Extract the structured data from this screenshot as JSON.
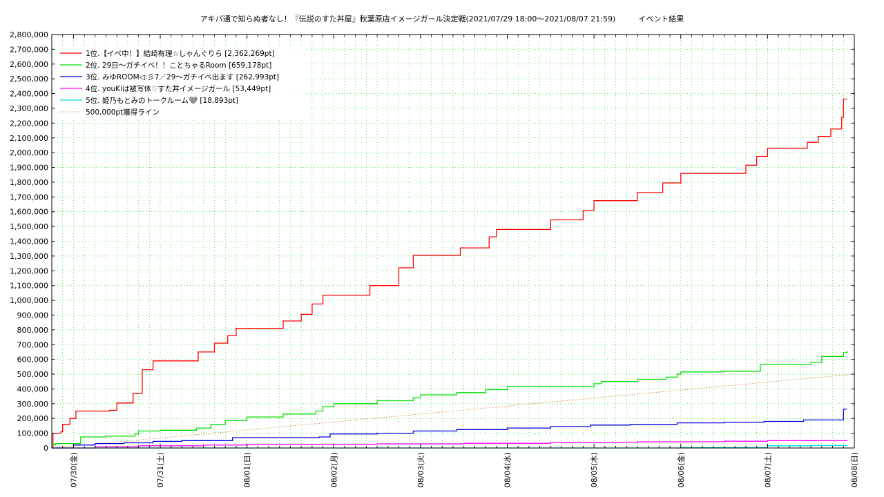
{
  "chart_data": {
    "type": "line",
    "title": "アキバ通で知らぬ者なし！『伝説のすた丼屋』秋葉原店イメージガール決定戦(2021/07/29 18:00〜2021/08/07 21:59)　　　イベント結果",
    "xlabel": "",
    "ylabel": "",
    "x_range": [
      "2021/07/29 18:00",
      "2021/08/08 00:00"
    ],
    "ylim": [
      0,
      2800000
    ],
    "y_ticks": [
      "0",
      "100,000",
      "200,000",
      "300,000",
      "400,000",
      "500,000",
      "600,000",
      "700,000",
      "800,000",
      "900,000",
      "1,000,000",
      "1,100,000",
      "1,200,000",
      "1,300,000",
      "1,400,000",
      "1,500,000",
      "1,600,000",
      "1,700,000",
      "1,800,000",
      "1,900,000",
      "2,000,000",
      "2,100,000",
      "2,200,000",
      "2,300,000",
      "2,400,000",
      "2,500,000",
      "2,600,000",
      "2,700,000",
      "2,800,000"
    ],
    "x_ticks": [
      {
        "label": "07/30(金)",
        "x": "2021/07/30 00:00"
      },
      {
        "label": "07/31(土)",
        "x": "2021/07/31 00:00"
      },
      {
        "label": "08/01(日)",
        "x": "2021/08/01 00:00"
      },
      {
        "label": "08/02(月)",
        "x": "2021/08/02 00:00"
      },
      {
        "label": "08/03(火)",
        "x": "2021/08/03 00:00"
      },
      {
        "label": "08/04(水)",
        "x": "2021/08/04 00:00"
      },
      {
        "label": "08/05(木)",
        "x": "2021/08/05 00:00"
      },
      {
        "label": "08/06(金)",
        "x": "2021/08/06 00:00"
      },
      {
        "label": "08/07(土)",
        "x": "2021/08/07 00:00"
      },
      {
        "label": "08/08(日)",
        "x": "2021/08/08 00:00"
      }
    ],
    "grid": true,
    "legend_position": "top-left",
    "series": [
      {
        "name": "1位.【イベ中！】結崎有理☆しゃんぐりら [2,362,269pt]",
        "color": "#ff0000",
        "points": [
          [
            "2021/07/29 18:00",
            0
          ],
          [
            "2021/07/29 18:20",
            100000
          ],
          [
            "2021/07/29 20:30",
            110000
          ],
          [
            "2021/07/29 21:00",
            160000
          ],
          [
            "2021/07/29 23:00",
            200000
          ],
          [
            "2021/07/30 00:40",
            250000
          ],
          [
            "2021/07/30 10:00",
            255000
          ],
          [
            "2021/07/30 12:00",
            305000
          ],
          [
            "2021/07/30 16:30",
            370000
          ],
          [
            "2021/07/30 19:00",
            530000
          ],
          [
            "2021/07/30 22:00",
            590000
          ],
          [
            "2021/07/31 10:30",
            650000
          ],
          [
            "2021/07/31 15:00",
            710000
          ],
          [
            "2021/07/31 18:40",
            760000
          ],
          [
            "2021/07/31 21:00",
            810000
          ],
          [
            "2021/08/01 10:00",
            860000
          ],
          [
            "2021/08/01 15:00",
            905000
          ],
          [
            "2021/08/01 18:00",
            975000
          ],
          [
            "2021/08/01 21:00",
            1035000
          ],
          [
            "2021/08/02 10:00",
            1100000
          ],
          [
            "2021/08/02 18:00",
            1220000
          ],
          [
            "2021/08/02 22:00",
            1305000
          ],
          [
            "2021/08/03 11:00",
            1355000
          ],
          [
            "2021/08/03 19:00",
            1430000
          ],
          [
            "2021/08/03 21:00",
            1480000
          ],
          [
            "2021/08/04 12:00",
            1545000
          ],
          [
            "2021/08/04 21:00",
            1610000
          ],
          [
            "2021/08/05 00:00",
            1675000
          ],
          [
            "2021/08/05 12:00",
            1730000
          ],
          [
            "2021/08/05 19:00",
            1795000
          ],
          [
            "2021/08/06 00:00",
            1860000
          ],
          [
            "2021/08/06 18:00",
            1915000
          ],
          [
            "2021/08/06 21:00",
            1975000
          ],
          [
            "2021/08/07 00:00",
            2030000
          ],
          [
            "2021/08/07 11:00",
            2070000
          ],
          [
            "2021/08/07 14:00",
            2110000
          ],
          [
            "2021/08/07 17:30",
            2160000
          ],
          [
            "2021/08/07 20:30",
            2240000
          ],
          [
            "2021/08/07 21:00",
            2362269
          ],
          [
            "2021/08/07 21:59",
            2362269
          ]
        ]
      },
      {
        "name": "2位. 29日〜ガチイベ！！ことちゃるRoom [659,178pt]",
        "color": "#00dd00",
        "points": [
          [
            "2021/07/29 18:00",
            20000
          ],
          [
            "2021/07/29 19:00",
            30000
          ],
          [
            "2021/07/30 02:00",
            75000
          ],
          [
            "2021/07/30 09:00",
            80000
          ],
          [
            "2021/07/30 17:00",
            95000
          ],
          [
            "2021/07/30 18:00",
            115000
          ],
          [
            "2021/07/31 00:00",
            120000
          ],
          [
            "2021/07/31 10:00",
            135000
          ],
          [
            "2021/07/31 14:00",
            160000
          ],
          [
            "2021/07/31 18:00",
            185000
          ],
          [
            "2021/08/01 00:00",
            210000
          ],
          [
            "2021/08/01 10:00",
            230000
          ],
          [
            "2021/08/01 19:00",
            250000
          ],
          [
            "2021/08/01 21:00",
            280000
          ],
          [
            "2021/08/02 00:00",
            300000
          ],
          [
            "2021/08/02 12:00",
            320000
          ],
          [
            "2021/08/02 22:00",
            340000
          ],
          [
            "2021/08/03 00:00",
            360000
          ],
          [
            "2021/08/03 10:00",
            375000
          ],
          [
            "2021/08/03 18:00",
            395000
          ],
          [
            "2021/08/04 00:00",
            415000
          ],
          [
            "2021/08/05 00:00",
            435000
          ],
          [
            "2021/08/05 02:00",
            450000
          ],
          [
            "2021/08/05 12:00",
            465000
          ],
          [
            "2021/08/05 20:00",
            480000
          ],
          [
            "2021/08/05 23:00",
            500000
          ],
          [
            "2021/08/06 00:00",
            515000
          ],
          [
            "2021/08/06 12:00",
            520000
          ],
          [
            "2021/08/06 22:00",
            565000
          ],
          [
            "2021/08/07 12:00",
            580000
          ],
          [
            "2021/08/07 15:00",
            620000
          ],
          [
            "2021/08/07 21:00",
            645000
          ],
          [
            "2021/08/07 21:59",
            659178
          ]
        ]
      },
      {
        "name": "3位. みゆROOM◁:彡7／29〜ガチイベ出ます [262,993pt]",
        "color": "#0000dd",
        "points": [
          [
            "2021/07/29 18:00",
            0
          ],
          [
            "2021/07/29 23:00",
            0
          ],
          [
            "2021/07/30 00:00",
            20000
          ],
          [
            "2021/07/30 06:00",
            30000
          ],
          [
            "2021/07/30 14:00",
            35000
          ],
          [
            "2021/07/30 22:00",
            45000
          ],
          [
            "2021/07/31 06:00",
            50000
          ],
          [
            "2021/07/31 20:00",
            70000
          ],
          [
            "2021/08/01 20:00",
            75000
          ],
          [
            "2021/08/01 23:00",
            95000
          ],
          [
            "2021/08/02 12:00",
            100000
          ],
          [
            "2021/08/02 22:00",
            115000
          ],
          [
            "2021/08/03 10:00",
            125000
          ],
          [
            "2021/08/04 00:00",
            135000
          ],
          [
            "2021/08/04 12:00",
            145000
          ],
          [
            "2021/08/04 23:00",
            155000
          ],
          [
            "2021/08/05 10:00",
            160000
          ],
          [
            "2021/08/05 23:00",
            170000
          ],
          [
            "2021/08/06 12:00",
            175000
          ],
          [
            "2021/08/06 23:00",
            180000
          ],
          [
            "2021/08/07 10:00",
            190000
          ],
          [
            "2021/08/07 20:30",
            190000
          ],
          [
            "2021/08/07 21:00",
            262993
          ],
          [
            "2021/08/07 21:59",
            262993
          ]
        ]
      },
      {
        "name": "4位. youKiは被写体♡すた丼イメージガール [53,449pt]",
        "color": "#ff00ff",
        "points": [
          [
            "2021/07/29 18:00",
            0
          ],
          [
            "2021/07/30 04:00",
            0
          ],
          [
            "2021/07/30 06:00",
            8000
          ],
          [
            "2021/07/30 18:00",
            15000
          ],
          [
            "2021/07/31 12:00",
            20000
          ],
          [
            "2021/08/01 00:00",
            25000
          ],
          [
            "2021/08/02 12:00",
            28000
          ],
          [
            "2021/08/03 12:00",
            32000
          ],
          [
            "2021/08/04 12:00",
            38000
          ],
          [
            "2021/08/05 12:00",
            42000
          ],
          [
            "2021/08/06 12:00",
            46000
          ],
          [
            "2021/08/07 00:00",
            50000
          ],
          [
            "2021/08/07 21:59",
            53449
          ]
        ]
      },
      {
        "name": "5位. 姫乃もとみのトークルーム🩶 [18,893pt]",
        "color": "#00dddd",
        "points": [
          [
            "2021/07/29 18:00",
            0
          ],
          [
            "2021/08/05 00:00",
            0
          ],
          [
            "2021/08/06 00:00",
            3000
          ],
          [
            "2021/08/07 00:00",
            15000
          ],
          [
            "2021/08/07 12:00",
            17000
          ],
          [
            "2021/08/07 21:59",
            18893
          ]
        ]
      },
      {
        "name": "500,000pt獲得ライン",
        "color": "#cc6600",
        "dotted": true,
        "points": [
          [
            "2021/07/29 18:00",
            0
          ],
          [
            "2021/08/08 00:00",
            500000
          ]
        ]
      }
    ]
  }
}
